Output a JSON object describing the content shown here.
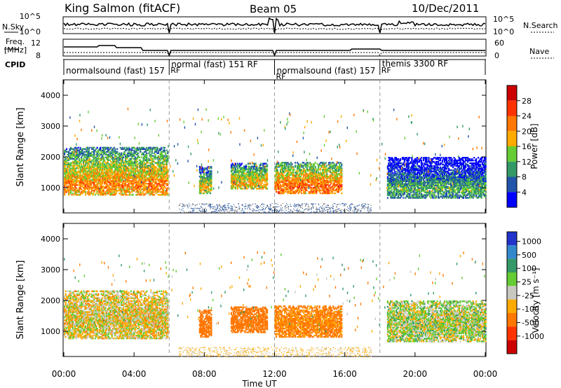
{
  "header": {
    "station": "King Salmon (fitACF)",
    "beam": "Beam 05",
    "date": "10/Dec/2011"
  },
  "side_labels": {
    "nsky": "N.Sky",
    "freq_line1": "Freq.",
    "freq_line2": "[MHz]",
    "cpid": "CPID",
    "nsearch": "N.Search",
    "nave": "Nave"
  },
  "noise_axis": {
    "ticks_left": [
      "10^5",
      "10^0"
    ],
    "ticks_right": [
      "10^5",
      "10^0"
    ]
  },
  "freq_axis": {
    "ticks_left": [
      "12",
      "8"
    ],
    "ticks_right": [
      "60",
      "0"
    ]
  },
  "cpid_segments": [
    {
      "start": 0,
      "end": 6,
      "label": "normalsound (fast) 157",
      "rf": ""
    },
    {
      "start": 6,
      "end": 12,
      "label": "normal (fast) 151 RF",
      "rf": "RF"
    },
    {
      "start": 12,
      "end": 18,
      "label": "normalsound (fast) 157",
      "rf": "RF"
    },
    {
      "start": 18,
      "end": 24,
      "label": "themis 3300 RF",
      "rf": "RF"
    }
  ],
  "x_axis": {
    "ticks": [
      "00:00",
      "04:00",
      "08:00",
      "12:00",
      "16:00",
      "20:00",
      "00:00"
    ],
    "label": "Time UT"
  },
  "panels": {
    "power": {
      "ylabel": "Slant Range [km]",
      "yticks": [
        "4000",
        "3000",
        "2000",
        "1000"
      ]
    },
    "velocity": {
      "ylabel": "Slant Range [km]",
      "yticks": [
        "4000",
        "3000",
        "2000",
        "1000"
      ]
    }
  },
  "power_scale": {
    "title": "Power [dB]",
    "labels": [
      "28",
      "24",
      "20",
      "16",
      "12",
      "8",
      "4"
    ],
    "colors": [
      "#cc0000",
      "#ff3300",
      "#ff7700",
      "#ffaa00",
      "#66cc33",
      "#339966",
      "#2255aa",
      "#0000ff"
    ]
  },
  "velocity_scale": {
    "title": "Velocity [m s⁻¹]",
    "labels": [
      "1000",
      "500",
      "100",
      "25",
      "-25",
      "-100",
      "-500",
      "-1000"
    ],
    "colors": [
      "#2233cc",
      "#3388cc",
      "#339966",
      "#66cc33",
      "#c8c8c0",
      "#ffaa00",
      "#ff7700",
      "#ff3300",
      "#cc0000"
    ]
  },
  "chart_data": {
    "type": "heatmap",
    "title": "King Salmon (fitACF)",
    "xlabel": "Time UT",
    "ylabel": "Slant Range [km]",
    "xlim": [
      0,
      24
    ],
    "ylim": [
      180,
      4500
    ],
    "echo_regions": [
      {
        "t0": 0.0,
        "t1": 5.9,
        "r0": 750,
        "r1": 2300,
        "power_db": 18,
        "velocity": -25
      },
      {
        "t0": 7.7,
        "t1": 8.4,
        "r0": 800,
        "r1": 1700,
        "power_db": 14,
        "velocity": -300
      },
      {
        "t0": 9.5,
        "t1": 11.6,
        "r0": 950,
        "r1": 1800,
        "power_db": 16,
        "velocity": -250
      },
      {
        "t0": 12.0,
        "t1": 15.8,
        "r0": 800,
        "r1": 1800,
        "power_db": 20,
        "velocity": -150
      },
      {
        "t0": 18.4,
        "t1": 24.0,
        "r0": 650,
        "r1": 2000,
        "power_db": 8,
        "velocity": 25
      }
    ],
    "near_range_clutter": {
      "t0": 6.5,
      "t1": 17.5,
      "r0": 180,
      "r1": 500
    }
  }
}
